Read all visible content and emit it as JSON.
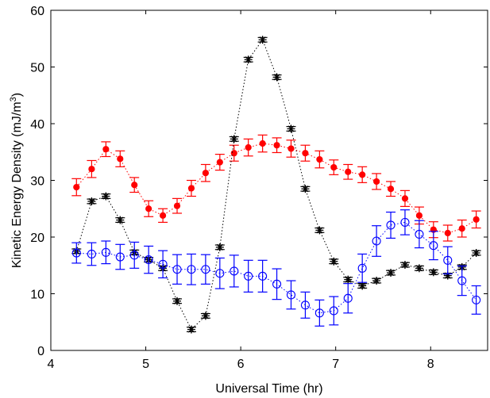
{
  "chart_data": {
    "type": "scatter",
    "title": "",
    "xlabel": "Universal Time (hr)",
    "ylabel": "Kinetic Energy Density (mJ/m",
    "ylabel_superscript": "3",
    "ylabel_close": ")",
    "xlim": [
      4,
      8.6
    ],
    "ylim": [
      0,
      60
    ],
    "xticks": [
      4,
      5,
      6,
      7,
      8
    ],
    "yticks": [
      0,
      10,
      20,
      30,
      40,
      50,
      60
    ],
    "grid": false,
    "legend": "none",
    "series": [
      {
        "color": "#ff0000",
        "marker": "filled-circle",
        "line": "dotted",
        "x": [
          4.27,
          4.43,
          4.58,
          4.73,
          4.88,
          5.03,
          5.18,
          5.33,
          5.48,
          5.63,
          5.78,
          5.93,
          6.08,
          6.23,
          6.38,
          6.53,
          6.68,
          6.83,
          6.98,
          7.13,
          7.28,
          7.43,
          7.58,
          7.73,
          7.88,
          8.03,
          8.18,
          8.33,
          8.48
        ],
        "y": [
          28.8,
          32.0,
          35.5,
          33.8,
          29.2,
          25.0,
          23.8,
          25.5,
          28.6,
          31.3,
          33.2,
          34.8,
          35.8,
          36.5,
          36.2,
          35.6,
          34.8,
          33.7,
          32.3,
          31.5,
          31.0,
          29.8,
          28.5,
          26.8,
          23.8,
          21.3,
          20.7,
          21.5,
          23.1
        ],
        "err": [
          1.5,
          1.5,
          1.3,
          1.4,
          1.3,
          1.4,
          1.2,
          1.3,
          1.4,
          1.5,
          1.4,
          1.4,
          1.5,
          1.5,
          1.3,
          1.5,
          1.4,
          1.5,
          1.3,
          1.3,
          1.4,
          1.4,
          1.3,
          1.4,
          1.5,
          1.4,
          1.4,
          1.5,
          1.5
        ]
      },
      {
        "color": "#000000",
        "marker": "asterisk",
        "line": "dotted",
        "x": [
          4.27,
          4.43,
          4.58,
          4.73,
          4.88,
          5.03,
          5.18,
          5.33,
          5.48,
          5.63,
          5.78,
          5.93,
          6.08,
          6.23,
          6.38,
          6.53,
          6.68,
          6.83,
          6.98,
          7.13,
          7.28,
          7.43,
          7.58,
          7.73,
          7.88,
          8.03,
          8.18,
          8.33,
          8.48
        ],
        "y": [
          17.5,
          26.3,
          27.2,
          23.0,
          17.3,
          16.0,
          14.5,
          8.7,
          3.7,
          6.1,
          18.2,
          37.3,
          51.3,
          54.8,
          48.2,
          39.1,
          28.5,
          21.2,
          15.7,
          12.5,
          11.4,
          12.3,
          13.7,
          15.1,
          14.5,
          13.8,
          13.2,
          14.7,
          17.2
        ],
        "err": [
          0.4,
          0.4,
          0.4,
          0.4,
          0.4,
          0.4,
          0.4,
          0.4,
          0.4,
          0.4,
          0.4,
          0.4,
          0.4,
          0.4,
          0.4,
          0.4,
          0.4,
          0.4,
          0.4,
          0.4,
          0.4,
          0.4,
          0.4,
          0.4,
          0.4,
          0.4,
          0.4,
          0.4,
          0.4
        ]
      },
      {
        "color": "#0000ff",
        "marker": "open-circle",
        "line": "dotted",
        "x": [
          4.27,
          4.43,
          4.58,
          4.73,
          4.88,
          5.03,
          5.18,
          5.33,
          5.48,
          5.63,
          5.78,
          5.93,
          6.08,
          6.23,
          6.38,
          6.53,
          6.68,
          6.83,
          6.98,
          7.13,
          7.28,
          7.43,
          7.58,
          7.73,
          7.88,
          8.03,
          8.18,
          8.33,
          8.48
        ],
        "y": [
          17.2,
          17.0,
          17.3,
          16.5,
          16.8,
          16.0,
          15.2,
          14.3,
          14.3,
          14.3,
          13.6,
          14.0,
          13.1,
          13.1,
          11.7,
          9.8,
          8.0,
          6.6,
          7.0,
          9.2,
          14.5,
          19.3,
          22.1,
          22.6,
          20.5,
          18.5,
          15.9,
          12.3,
          8.9
        ],
        "err": [
          1.8,
          2.0,
          2.0,
          2.2,
          2.3,
          2.4,
          2.4,
          2.6,
          2.7,
          2.6,
          2.7,
          2.8,
          2.8,
          2.8,
          2.7,
          2.5,
          2.3,
          2.3,
          2.5,
          2.6,
          2.5,
          2.7,
          2.3,
          2.2,
          2.4,
          2.5,
          2.4,
          2.6,
          2.5
        ]
      }
    ]
  }
}
